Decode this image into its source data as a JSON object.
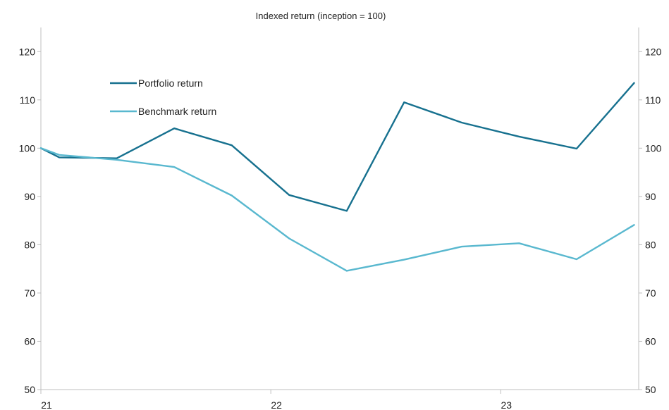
{
  "chart_data": {
    "type": "line",
    "title": "Indexed return (inception = 100)",
    "xlabel": "",
    "ylabel": "",
    "x": [
      2021.0,
      2021.08,
      2021.33,
      2021.58,
      2021.83,
      2022.08,
      2022.33,
      2022.58,
      2022.83,
      2023.08,
      2023.33,
      2023.58
    ],
    "xlim": [
      2021.0,
      2023.6
    ],
    "x_ticks": [
      2021,
      2022,
      2023
    ],
    "x_tick_labels": [
      "21",
      "22",
      "23"
    ],
    "ylim": [
      50,
      125
    ],
    "y_ticks": [
      50,
      60,
      70,
      80,
      90,
      100,
      110,
      120
    ],
    "y_tick_labels": [
      "50",
      "60",
      "70",
      "80",
      "90",
      "100",
      "110",
      "120"
    ],
    "grid": false,
    "legend_position": "top-left",
    "series": [
      {
        "name": "Portfolio return",
        "color": "#17718f",
        "values": [
          100,
          98.1,
          97.9,
          104.1,
          100.6,
          90.3,
          87.0,
          109.5,
          105.3,
          102.4,
          99.9,
          113.5
        ]
      },
      {
        "name": "Benchmark return",
        "color": "#59b8cf",
        "values": [
          100,
          98.6,
          97.6,
          96.1,
          90.2,
          81.3,
          74.6,
          76.9,
          79.6,
          80.3,
          77.0,
          84.1
        ]
      }
    ]
  }
}
